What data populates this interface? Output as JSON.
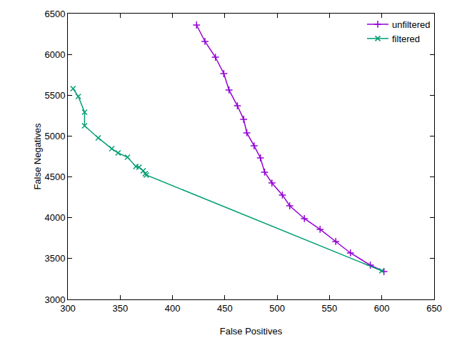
{
  "chart_data": {
    "type": "line",
    "x_label": "False Positives",
    "y_label": "False Negatives",
    "xlim": [
      300,
      650
    ],
    "xticks": [
      300,
      350,
      400,
      450,
      500,
      550,
      600,
      650
    ],
    "ylim": [
      3000,
      6500
    ],
    "yticks": [
      3000,
      3500,
      4000,
      4500,
      5000,
      5500,
      6000,
      6500
    ],
    "grid": false,
    "legend": "top right",
    "series": [
      {
        "name": "unfiltered",
        "color": "#9400d3",
        "marker": "plus",
        "x": [
          423,
          431,
          441,
          449,
          454,
          462,
          468,
          471,
          478,
          484,
          488,
          495,
          505,
          512,
          526,
          541,
          556,
          570,
          589,
          602
        ],
        "values": [
          6360,
          6159,
          5966,
          5765,
          5564,
          5371,
          5205,
          5039,
          4881,
          4733,
          4558,
          4426,
          4278,
          4146,
          3989,
          3858,
          3709,
          3569,
          3420,
          3341
        ]
      },
      {
        "name": "filtered",
        "color": "#009e73",
        "marker": "cross",
        "x": [
          305,
          310,
          316,
          316,
          329,
          342,
          348,
          357,
          365,
          368,
          372,
          374,
          375,
          600
        ],
        "values": [
          5581,
          5485,
          5293,
          5126,
          4978,
          4846,
          4794,
          4741,
          4628,
          4619,
          4575,
          4540,
          4523,
          3350
        ]
      }
    ]
  }
}
